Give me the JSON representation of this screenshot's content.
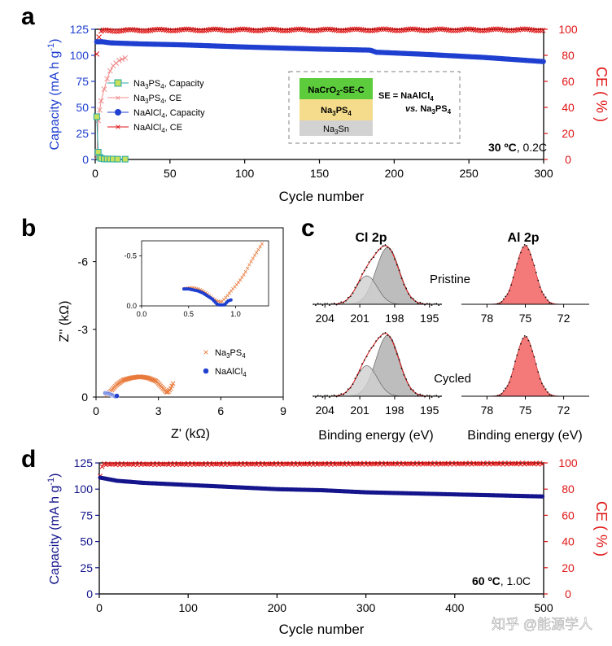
{
  "colors": {
    "blue": "#1f3fd0",
    "navy": "#14148c",
    "red": "#e01616",
    "pink": "#f08a8a",
    "orange": "#e87a3c",
    "teal": "#23a8a8",
    "yellowgreen": "#c8e05a",
    "green": "#5ccc3c",
    "sand": "#f5dc8c",
    "grey": "#d2d2d2",
    "peakgrey": "#bdbdbd",
    "salmon": "#f47a7a"
  },
  "panels": {
    "a": {
      "letter": "a"
    },
    "b": {
      "letter": "b"
    },
    "c": {
      "letter": "c"
    },
    "d": {
      "letter": "d"
    }
  },
  "chart_data": [
    {
      "id": "a",
      "type": "scatter",
      "xlabel": "Cycle number",
      "ylabel": "Capacity (mA h g-1)",
      "ylabel2": "CE ( % )",
      "xlim": [
        0,
        300
      ],
      "ylim": [
        0,
        125
      ],
      "ylim2": [
        0,
        100
      ],
      "xticks": [
        "0",
        "50",
        "100",
        "150",
        "200",
        "250",
        "300"
      ],
      "yticks": [
        "0",
        "25",
        "50",
        "75",
        "100",
        "125"
      ],
      "yticks2": [
        "0",
        "20",
        "40",
        "60",
        "80",
        "100"
      ],
      "annotation": "30 ºC, 0.2C",
      "legend": [
        "Na3PS4, Capacity",
        "Na3PS4, CE",
        "NaAlCl4, Capacity",
        "NaAlCl4, CE"
      ],
      "inset": {
        "layers": [
          "NaCrO2-SE-C",
          "Na3PS4",
          "Na3Sn"
        ],
        "note_line1": "SE = NaAlCl4",
        "note_line2": "vs. Na3PS4"
      },
      "series": [
        {
          "name": "NaAlCl4, Capacity",
          "axis": "left",
          "x": [
            1,
            5,
            10,
            30,
            60,
            100,
            150,
            184,
            188,
            220,
            260,
            300
          ],
          "y": [
            113,
            113,
            112,
            111,
            110,
            108,
            106,
            105,
            103,
            101,
            98,
            94
          ]
        },
        {
          "name": "NaAlCl4, CE",
          "axis": "right",
          "x": [
            1,
            2,
            3,
            4,
            6,
            10,
            50,
            100,
            150,
            200,
            250,
            300
          ],
          "y": [
            81,
            92,
            96,
            98,
            99,
            99,
            99.5,
            99.5,
            99.5,
            99.6,
            99.6,
            99.6
          ]
        },
        {
          "name": "Na3PS4, Capacity",
          "axis": "left",
          "x": [
            1,
            2,
            3,
            4,
            6,
            8,
            10,
            12,
            15,
            20
          ],
          "y": [
            41,
            7,
            2,
            1,
            0.5,
            0.5,
            0.4,
            0.4,
            0.3,
            0.3
          ]
        },
        {
          "name": "Na3PS4, CE",
          "axis": "right",
          "x": [
            1,
            2,
            3,
            4,
            6,
            8,
            10,
            12,
            14,
            16,
            18,
            20
          ],
          "y": [
            2,
            30,
            38,
            45,
            54,
            62,
            68,
            72,
            74,
            76,
            77,
            78
          ]
        }
      ]
    },
    {
      "id": "b",
      "type": "scatter",
      "xlabel": "Z' (kΩ)",
      "ylabel": "Z'' (kΩ)",
      "xlim": [
        0,
        9
      ],
      "ylim": [
        0,
        -7.5
      ],
      "xticks": [
        "0",
        "3",
        "6",
        "9"
      ],
      "yticks": [
        "0",
        "-3",
        "-6"
      ],
      "legend": [
        "Na3PS4",
        "NaAlCl4"
      ],
      "series": [
        {
          "name": "Na3PS4",
          "x": [
            0.5,
            0.7,
            1.0,
            1.3,
            1.7,
            2.1,
            2.5,
            2.9,
            3.2,
            3.4,
            3.5,
            3.6,
            3.7
          ],
          "y": [
            -0.1,
            -0.25,
            -0.55,
            -0.75,
            -0.85,
            -0.9,
            -0.85,
            -0.7,
            -0.4,
            -0.2,
            -0.25,
            -0.4,
            -0.6
          ]
        },
        {
          "name": "NaAlCl4",
          "x": [
            0.45,
            0.55,
            0.65,
            0.75,
            0.85,
            0.95,
            1.0
          ],
          "y": [
            -0.17,
            -0.16,
            -0.14,
            -0.1,
            -0.06,
            -0.03,
            -0.05
          ]
        }
      ],
      "inset": {
        "xlim": [
          0,
          1.35
        ],
        "ylim": [
          0,
          -0.65
        ],
        "xticks": [
          "0.0",
          "0.5",
          "1.0"
        ],
        "yticks": [
          "0.0",
          "-0.5"
        ],
        "series": [
          {
            "name": "Na3PS4",
            "x": [
              0.45,
              0.5,
              0.55,
              0.6,
              0.65,
              0.7,
              0.75,
              0.8,
              0.85,
              0.88,
              0.92,
              0.96,
              1.0,
              1.05,
              1.1,
              1.15,
              1.2,
              1.28
            ],
            "y": [
              -0.17,
              -0.18,
              -0.18,
              -0.17,
              -0.15,
              -0.12,
              -0.08,
              -0.05,
              -0.04,
              -0.07,
              -0.11,
              -0.16,
              -0.2,
              -0.26,
              -0.33,
              -0.42,
              -0.5,
              -0.62
            ]
          },
          {
            "name": "NaAlCl4",
            "x": [
              0.45,
              0.5,
              0.55,
              0.6,
              0.65,
              0.7,
              0.75,
              0.78,
              0.8,
              0.82,
              0.85,
              0.88,
              0.9,
              0.92,
              0.95
            ],
            "y": [
              -0.17,
              -0.17,
              -0.16,
              -0.15,
              -0.13,
              -0.1,
              -0.07,
              -0.04,
              -0.02,
              -0.01,
              -0.01,
              -0.01,
              -0.03,
              -0.05,
              -0.06
            ]
          }
        ]
      }
    },
    {
      "id": "c",
      "type": "line",
      "xlabel": "Binding energy (eV)",
      "titles": [
        "Cl 2p",
        "Al 2p"
      ],
      "rows": [
        "Pristine",
        "Cycled"
      ],
      "cl_xlim": [
        205,
        194
      ],
      "cl_xticks": [
        "204",
        "201",
        "198",
        "195"
      ],
      "al_xlim": [
        80,
        70
      ],
      "al_xticks": [
        "78",
        "75",
        "72"
      ],
      "cl_peaks": [
        {
          "center": 198.6,
          "width": 1.0,
          "height": 1.0
        },
        {
          "center": 200.4,
          "width": 0.9,
          "height": 0.5
        }
      ],
      "al_peak": {
        "center": 75.0,
        "width": 0.75,
        "height": 1.0
      }
    },
    {
      "id": "d",
      "type": "scatter",
      "xlabel": "Cycle number",
      "ylabel": "Capacity (mA h g-1)",
      "ylabel2": "CE ( % )",
      "xlim": [
        0,
        500
      ],
      "ylim": [
        0,
        125
      ],
      "ylim2": [
        0,
        100
      ],
      "xticks": [
        "0",
        "100",
        "200",
        "300",
        "400",
        "500"
      ],
      "yticks": [
        "0",
        "25",
        "50",
        "75",
        "100",
        "125"
      ],
      "yticks2": [
        "0",
        "20",
        "40",
        "60",
        "80",
        "100"
      ],
      "annotation": "60 ºC, 1.0C",
      "series": [
        {
          "name": "Capacity",
          "axis": "left",
          "x": [
            1,
            20,
            50,
            100,
            150,
            200,
            250,
            300,
            350,
            400,
            450,
            500
          ],
          "y": [
            111,
            108,
            106,
            104,
            102,
            100,
            99,
            97,
            96,
            95,
            94,
            93
          ]
        },
        {
          "name": "CE",
          "axis": "right",
          "x": [
            1,
            3,
            5,
            500
          ],
          "y": [
            90,
            97,
            99,
            99.5
          ]
        }
      ]
    }
  ],
  "watermark": "知乎 @能源学人"
}
